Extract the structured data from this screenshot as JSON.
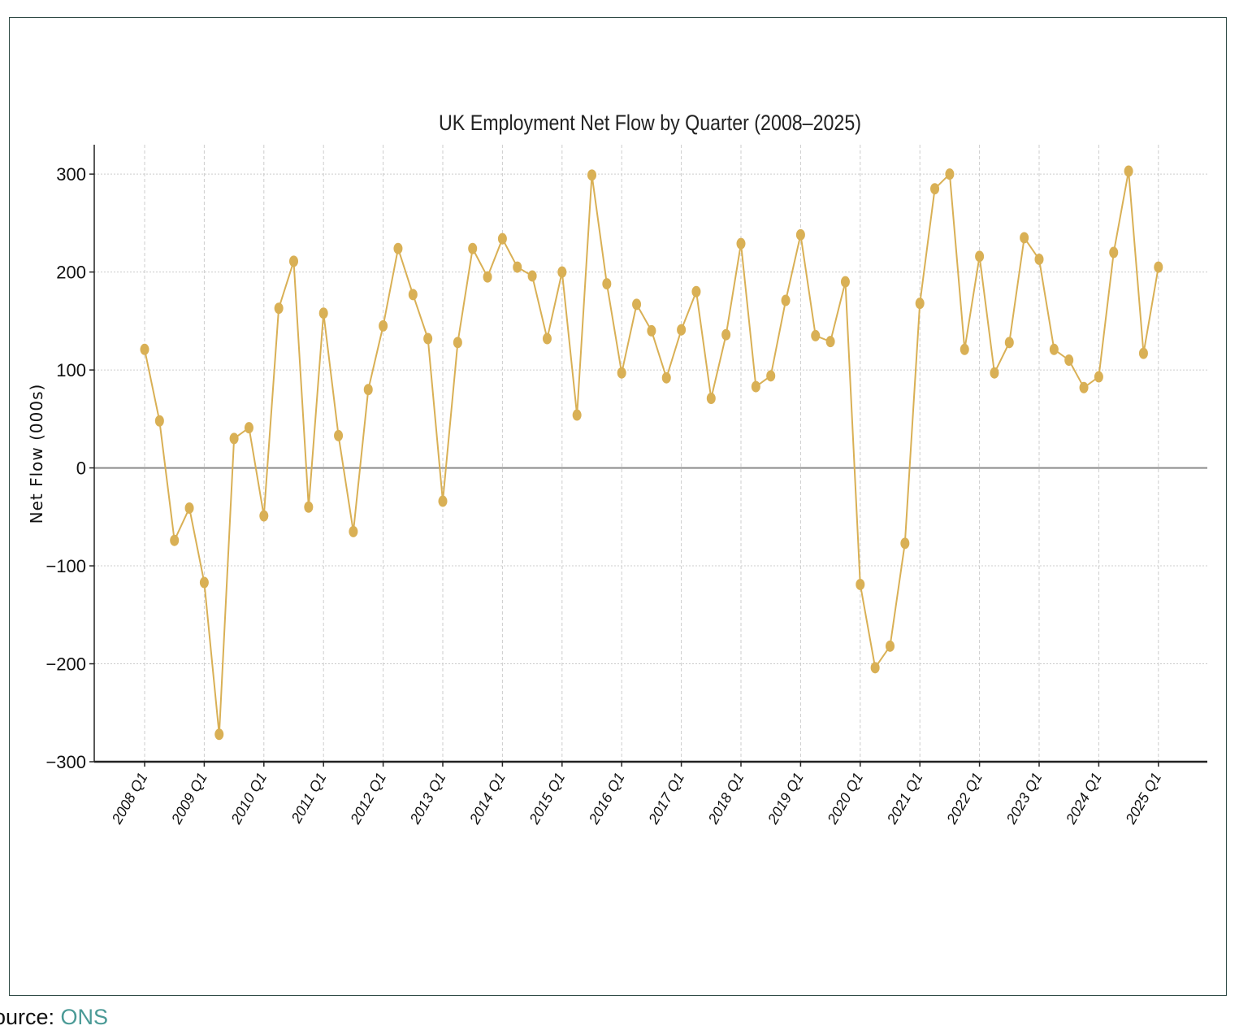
{
  "source": {
    "prefix": "ource: ",
    "link_text": "ONS"
  },
  "colors": {
    "series": "#d9b055",
    "zero_line": "#8c8c8c",
    "grid": "#cccccc",
    "frame": "#2f4a45",
    "source_link": "#4a9a96"
  },
  "chart_data": {
    "type": "line",
    "title": "UK Employment Net Flow by Quarter (2008–2025)",
    "xlabel": "",
    "ylabel": "Net Flow (000s)",
    "ylim": [
      -300,
      330
    ],
    "yticks": [
      {
        "value": 300,
        "label": "300"
      },
      {
        "value": 200,
        "label": "200"
      },
      {
        "value": 100,
        "label": "100"
      },
      {
        "value": 0,
        "label": "0"
      },
      {
        "value": -100,
        "label": "−100"
      },
      {
        "value": -200,
        "label": "−200"
      },
      {
        "value": -300,
        "label": "−300"
      }
    ],
    "xtick_labels": [
      "2008 Q1",
      "2009 Q1",
      "2010 Q1",
      "2011 Q1",
      "2012 Q1",
      "2013 Q1",
      "2014 Q1",
      "2015 Q1",
      "2016 Q1",
      "2017 Q1",
      "2018 Q1",
      "2019 Q1",
      "2020 Q1",
      "2021 Q1",
      "2022 Q1",
      "2023 Q1",
      "2024 Q1",
      "2025 Q1"
    ],
    "grid": true,
    "zero_line": true,
    "series": [
      {
        "x": [
          "2008 Q1",
          "2008 Q2",
          "2008 Q3",
          "2008 Q4",
          "2009 Q1",
          "2009 Q2",
          "2009 Q3",
          "2009 Q4",
          "2010 Q1",
          "2010 Q2",
          "2010 Q3",
          "2010 Q4",
          "2011 Q1",
          "2011 Q2",
          "2011 Q3",
          "2011 Q4",
          "2012 Q1",
          "2012 Q2",
          "2012 Q3",
          "2012 Q4",
          "2013 Q1",
          "2013 Q2",
          "2013 Q3",
          "2013 Q4",
          "2014 Q1",
          "2014 Q2",
          "2014 Q3",
          "2014 Q4",
          "2015 Q1",
          "2015 Q2",
          "2015 Q3",
          "2015 Q4",
          "2016 Q1",
          "2016 Q2",
          "2016 Q3",
          "2016 Q4",
          "2017 Q1",
          "2017 Q2",
          "2017 Q3",
          "2017 Q4",
          "2018 Q1",
          "2018 Q2",
          "2018 Q3",
          "2018 Q4",
          "2019 Q1",
          "2019 Q2",
          "2019 Q3",
          "2019 Q4",
          "2020 Q1",
          "2020 Q2",
          "2020 Q3",
          "2020 Q4",
          "2021 Q1",
          "2021 Q2",
          "2021 Q3",
          "2021 Q4",
          "2022 Q1",
          "2022 Q2",
          "2022 Q3",
          "2022 Q4",
          "2023 Q1",
          "2023 Q2",
          "2023 Q3",
          "2023 Q4",
          "2024 Q1",
          "2024 Q2",
          "2024 Q3",
          "2024 Q4",
          "2025 Q1"
        ],
        "values": [
          121,
          48,
          -74,
          -41,
          -117,
          -272,
          30,
          41,
          -49,
          163,
          211,
          -40,
          158,
          33,
          -65,
          80,
          145,
          224,
          177,
          132,
          -34,
          128,
          224,
          195,
          234,
          205,
          196,
          132,
          200,
          54,
          299,
          188,
          97,
          167,
          140,
          92,
          141,
          180,
          71,
          136,
          229,
          83,
          94,
          171,
          238,
          135,
          129,
          190,
          -119,
          -204,
          -182,
          -77,
          168,
          285,
          300,
          121,
          216,
          97,
          128,
          235,
          213,
          121,
          110,
          82,
          93,
          220,
          303,
          117,
          205
        ]
      }
    ]
  }
}
